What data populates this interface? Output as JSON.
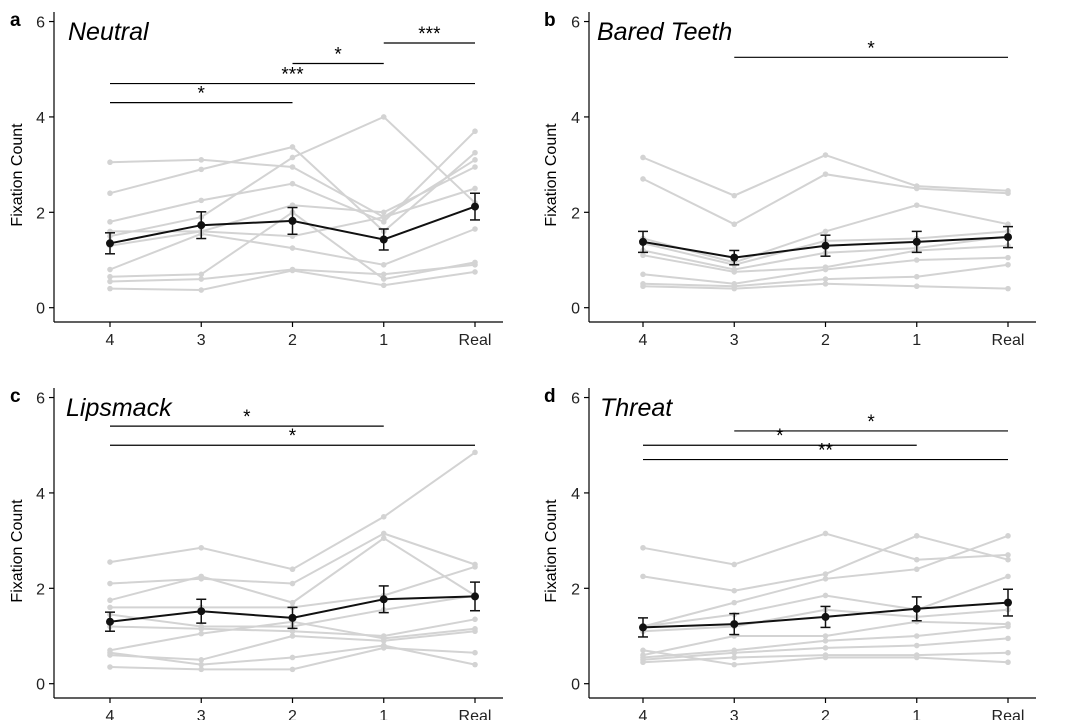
{
  "colors": {
    "participant": "#d3d3d3",
    "mean": "#111111",
    "axis": "#000000",
    "bracket": "#000000"
  },
  "chart_data": [
    {
      "panel": "a",
      "title": "Neutral",
      "type": "line",
      "categories": [
        "4",
        "3",
        "2",
        "1",
        "Real"
      ],
      "ylabel": "Fixation Count",
      "ylim": [
        -0.3,
        6.2
      ],
      "yticks": [
        "0",
        "2",
        "4",
        "6"
      ],
      "participants": [
        [
          3.05,
          3.1,
          2.95,
          1.9,
          3.1
        ],
        [
          2.4,
          2.9,
          3.37,
          1.6,
          3.25
        ],
        [
          1.8,
          2.25,
          2.6,
          1.8,
          3.7
        ],
        [
          1.6,
          1.6,
          2.15,
          2.0,
          2.95
        ],
        [
          1.5,
          1.9,
          3.15,
          4.0,
          2.2
        ],
        [
          1.3,
          1.6,
          1.5,
          1.9,
          2.5
        ],
        [
          0.8,
          1.55,
          1.25,
          0.9,
          1.65
        ],
        [
          0.65,
          0.7,
          2.0,
          0.6,
          0.95
        ],
        [
          0.55,
          0.6,
          0.8,
          0.7,
          0.9
        ],
        [
          0.4,
          0.37,
          0.78,
          0.47,
          0.75
        ]
      ],
      "mean": [
        1.35,
        1.73,
        1.82,
        1.43,
        2.12
      ],
      "error": [
        0.22,
        0.28,
        0.28,
        0.22,
        0.28
      ],
      "significance": [
        {
          "from": 3,
          "to": 4,
          "label": "***",
          "y": 5.55
        },
        {
          "from": 2,
          "to": 3,
          "label": "*",
          "y": 5.12
        },
        {
          "from": 0,
          "to": 4,
          "label": "***",
          "y": 4.7
        },
        {
          "from": 0,
          "to": 2,
          "label": "*",
          "y": 4.3
        }
      ]
    },
    {
      "panel": "b",
      "title": "Bared Teeth",
      "type": "line",
      "categories": [
        "4",
        "3",
        "2",
        "1",
        "Real"
      ],
      "ylabel": "Fixation Count",
      "ylim": [
        -0.3,
        6.2
      ],
      "yticks": [
        "0",
        "2",
        "4",
        "6"
      ],
      "participants": [
        [
          3.15,
          2.35,
          3.2,
          2.55,
          2.45
        ],
        [
          2.7,
          1.75,
          2.8,
          2.5,
          2.4
        ],
        [
          1.45,
          0.95,
          1.6,
          2.15,
          1.75
        ],
        [
          1.35,
          0.9,
          1.4,
          1.45,
          1.6
        ],
        [
          1.2,
          0.8,
          1.15,
          1.25,
          1.5
        ],
        [
          1.1,
          0.75,
          0.85,
          1.2,
          1.3
        ],
        [
          0.7,
          0.5,
          0.8,
          1.0,
          1.05
        ],
        [
          0.5,
          0.45,
          0.6,
          0.65,
          0.9
        ],
        [
          0.45,
          0.4,
          0.5,
          0.45,
          0.4
        ]
      ],
      "mean": [
        1.38,
        1.05,
        1.3,
        1.38,
        1.48
      ],
      "error": [
        0.22,
        0.15,
        0.22,
        0.22,
        0.22
      ],
      "significance": [
        {
          "from": 1,
          "to": 4,
          "label": "*",
          "y": 5.25
        }
      ]
    },
    {
      "panel": "c",
      "title": "Lipsmack",
      "type": "line",
      "categories": [
        "4",
        "3",
        "2",
        "1",
        "Real"
      ],
      "ylabel": "Fixation Count",
      "ylim": [
        -0.3,
        6.2
      ],
      "yticks": [
        "0",
        "2",
        "4",
        "6"
      ],
      "participants": [
        [
          2.55,
          2.85,
          2.4,
          3.5,
          4.85
        ],
        [
          2.1,
          2.2,
          2.1,
          3.15,
          2.5
        ],
        [
          1.75,
          2.25,
          1.7,
          3.05,
          1.85
        ],
        [
          1.6,
          1.6,
          1.6,
          1.85,
          2.45
        ],
        [
          1.45,
          1.2,
          1.2,
          1.55,
          1.85
        ],
        [
          1.2,
          1.15,
          1.1,
          1.0,
          1.35
        ],
        [
          0.7,
          1.05,
          1.3,
          0.95,
          1.15
        ],
        [
          0.6,
          0.5,
          1.0,
          0.9,
          1.1
        ],
        [
          0.35,
          0.3,
          0.3,
          0.75,
          0.65
        ],
        [
          0.65,
          0.4,
          0.55,
          0.8,
          0.4
        ]
      ],
      "mean": [
        1.3,
        1.52,
        1.38,
        1.77,
        1.83
      ],
      "error": [
        0.2,
        0.25,
        0.22,
        0.28,
        0.3
      ],
      "significance": [
        {
          "from": 0,
          "to": 3,
          "label": "*",
          "y": 5.4
        },
        {
          "from": 0,
          "to": 4,
          "label": "*",
          "y": 5.0
        }
      ]
    },
    {
      "panel": "d",
      "title": "Threat",
      "type": "line",
      "categories": [
        "4",
        "3",
        "2",
        "1",
        "Real"
      ],
      "ylabel": "Fixation Count",
      "ylim": [
        -0.3,
        6.2
      ],
      "yticks": [
        "0",
        "2",
        "4",
        "6"
      ],
      "participants": [
        [
          2.85,
          2.5,
          3.15,
          2.6,
          2.7
        ],
        [
          2.25,
          1.95,
          2.3,
          3.1,
          2.6
        ],
        [
          1.2,
          1.7,
          2.2,
          2.4,
          3.1
        ],
        [
          1.2,
          1.45,
          1.85,
          1.55,
          2.25
        ],
        [
          1.1,
          1.2,
          1.55,
          1.4,
          1.55
        ],
        [
          0.6,
          1.0,
          1.0,
          1.3,
          1.25
        ],
        [
          0.55,
          0.7,
          0.9,
          1.0,
          1.2
        ],
        [
          0.5,
          0.65,
          0.75,
          0.8,
          0.95
        ],
        [
          0.45,
          0.55,
          0.6,
          0.6,
          0.65
        ],
        [
          0.7,
          0.4,
          0.55,
          0.55,
          0.45
        ]
      ],
      "mean": [
        1.18,
        1.25,
        1.4,
        1.57,
        1.7
      ],
      "error": [
        0.2,
        0.22,
        0.22,
        0.25,
        0.28
      ],
      "significance": [
        {
          "from": 1,
          "to": 4,
          "label": "*",
          "y": 5.3
        },
        {
          "from": 0,
          "to": 3,
          "label": "*",
          "y": 5.0
        },
        {
          "from": 0,
          "to": 4,
          "label": "**",
          "y": 4.7
        }
      ]
    }
  ]
}
